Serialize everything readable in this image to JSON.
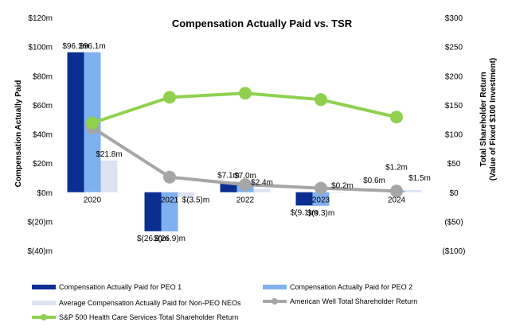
{
  "chart_data": {
    "type": "bar+line",
    "title": "Compensation Actually Paid vs. TSR",
    "ylabel": "Compensation Actually Paid",
    "y2label_line1": "Total Shareholder Return",
    "y2label_line2": "(Value of Fixed $100 Investment)",
    "categories": [
      "2020",
      "2021",
      "2022",
      "2023",
      "2024"
    ],
    "ylim": [
      -40,
      120
    ],
    "y2lim": [
      -100,
      300
    ],
    "yticks": [
      {
        "v": 120,
        "label": "$120m"
      },
      {
        "v": 100,
        "label": "$100m"
      },
      {
        "v": 80,
        "label": "$80m"
      },
      {
        "v": 60,
        "label": "$60m"
      },
      {
        "v": 40,
        "label": "$40m"
      },
      {
        "v": 20,
        "label": "$20m"
      },
      {
        "v": 0,
        "label": "$0m"
      },
      {
        "v": -20,
        "label": "$(20)m"
      },
      {
        "v": -40,
        "label": "$(40)m"
      }
    ],
    "y2ticks": [
      {
        "v": 300,
        "label": "$300"
      },
      {
        "v": 250,
        "label": "$250"
      },
      {
        "v": 200,
        "label": "$200"
      },
      {
        "v": 150,
        "label": "$150"
      },
      {
        "v": 100,
        "label": "$100"
      },
      {
        "v": 50,
        "label": "$50"
      },
      {
        "v": 0,
        "label": "$0"
      },
      {
        "v": -50,
        "label": "($50)"
      },
      {
        "v": -100,
        "label": "($100)"
      }
    ],
    "bar_series": [
      {
        "name": "Compensation Actually Paid for PEO 1",
        "color": "#0b2e91",
        "values": [
          96.1,
          -26.8,
          7.1,
          -9.1,
          null
        ],
        "labels": [
          "$96.1m",
          "$(26.8)m",
          "$7.1m",
          "$(9.1)m",
          ""
        ]
      },
      {
        "name": "Compensation Actually Paid for PEO 2",
        "color": "#7fb0f0",
        "values": [
          96.1,
          -26.9,
          7.0,
          -9.3,
          1.2
        ],
        "labels": [
          "$96.1m",
          "$(26.9)m",
          "$7.0m",
          "$(9.3)m",
          "$1.2m"
        ]
      },
      {
        "name": "Average Compensation Actually Paid for Non-PEO NEOs",
        "color": "#dde3f4",
        "values": [
          21.8,
          -3.5,
          2.4,
          0.2,
          1.5
        ],
        "labels": [
          "$21.8m",
          "$(3.5)m",
          "$2.4m",
          "$0.2m",
          "$1.5m"
        ]
      }
    ],
    "line_series": [
      {
        "name": "American Well Total Shareholder Return",
        "color": "#a6a6a6",
        "values": [
          111,
          26,
          13,
          7,
          2
        ]
      },
      {
        "name": "S&P 500 Health Care Services Total Shareholder Return",
        "color": "#8fd14f",
        "values": [
          119,
          163,
          170,
          159,
          129
        ]
      }
    ],
    "extra_labels": [
      {
        "text": "$0.6m",
        "category": "2024"
      }
    ]
  },
  "legend": {
    "peo1": "Compensation Actually Paid for PEO 1",
    "peo2": "Compensation Actually Paid for PEO 2",
    "neo": "Average Compensation Actually Paid for Non-PEO NEOs",
    "amwell": "American Well Total Shareholder Return",
    "sp500": "S&P 500 Health Care Services Total Shareholder Return"
  },
  "colors": {
    "peo1": "#0b2e91",
    "peo2": "#7fb0f0",
    "neo": "#dde3f4",
    "amwell": "#a6a6a6",
    "sp500": "#8fd14f"
  }
}
